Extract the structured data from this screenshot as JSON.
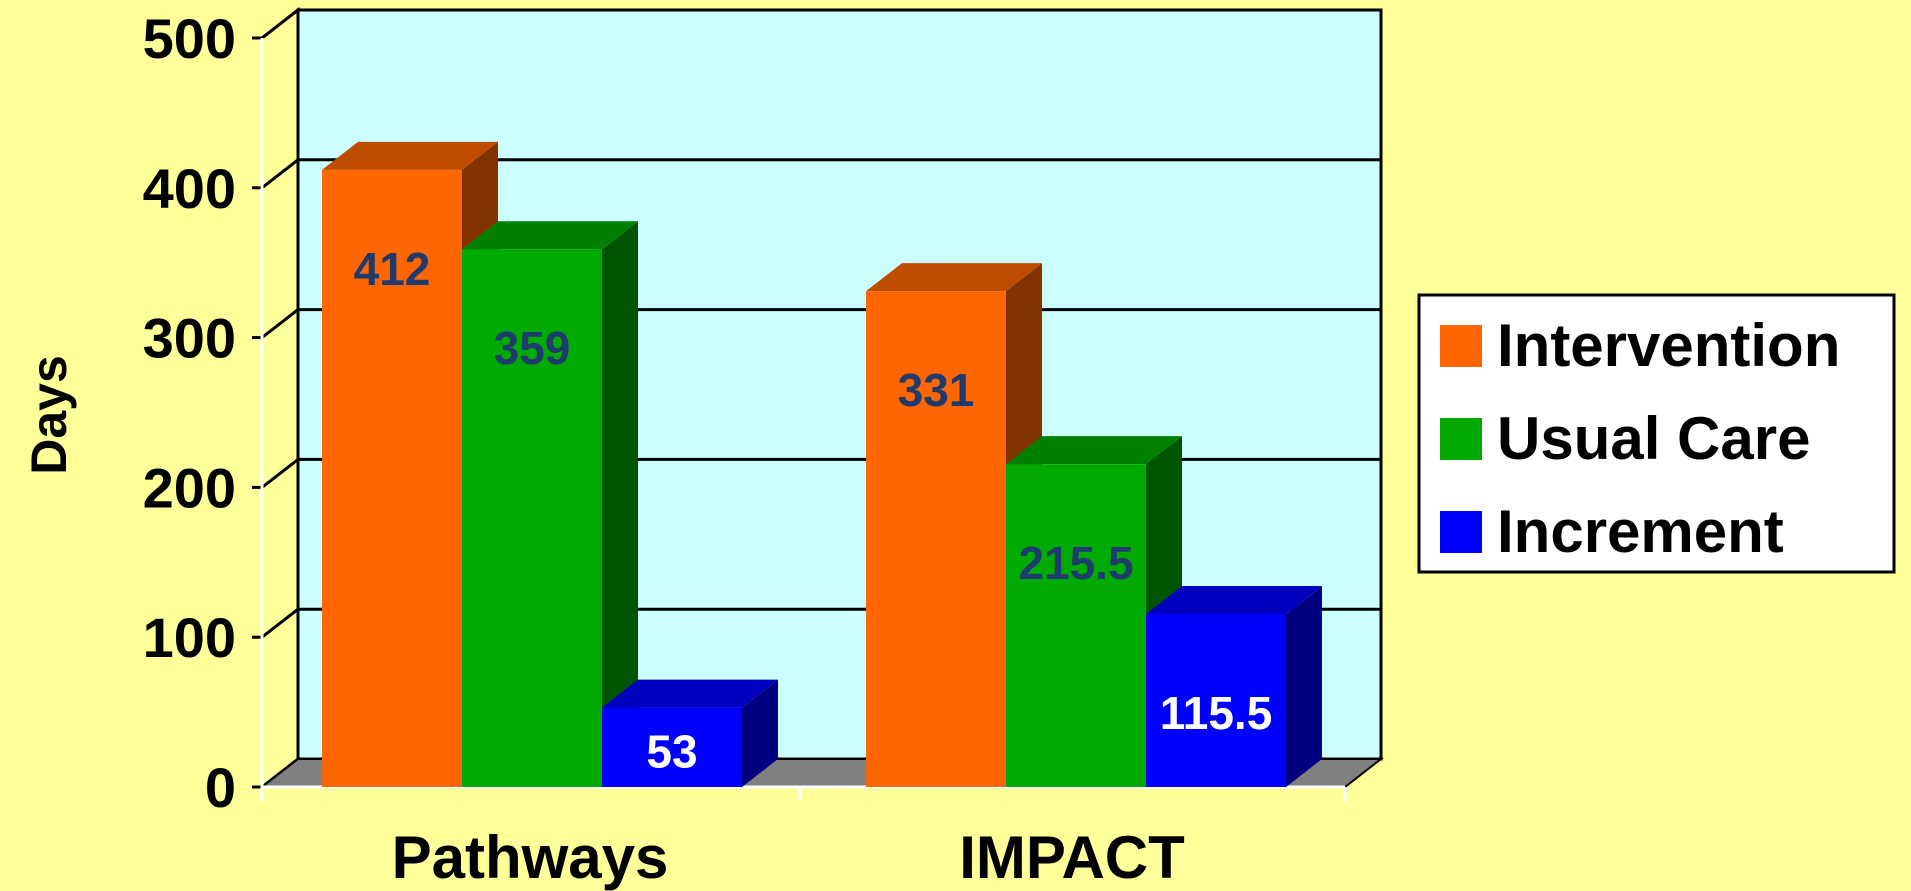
{
  "chart_data": {
    "type": "bar",
    "categories": [
      "Pathways",
      "IMPACT"
    ],
    "ylabel": "Days",
    "ylim": [
      0,
      500
    ],
    "yticks": [
      0,
      100,
      200,
      300,
      400,
      500
    ],
    "grid": true,
    "three_d": true,
    "legend_position": "right",
    "series": [
      {
        "name": "Intervention",
        "values": [
          412,
          331
        ],
        "color": "#ff6600",
        "label_color": "#1f3a6e"
      },
      {
        "name": "Usual Care",
        "values": [
          359,
          215.5
        ],
        "color": "#00aa00",
        "label_color": "#1f3a6e"
      },
      {
        "name": "Increment",
        "values": [
          53,
          115.5
        ],
        "color": "#0000ff",
        "label_color": "#ffffff"
      }
    ]
  }
}
